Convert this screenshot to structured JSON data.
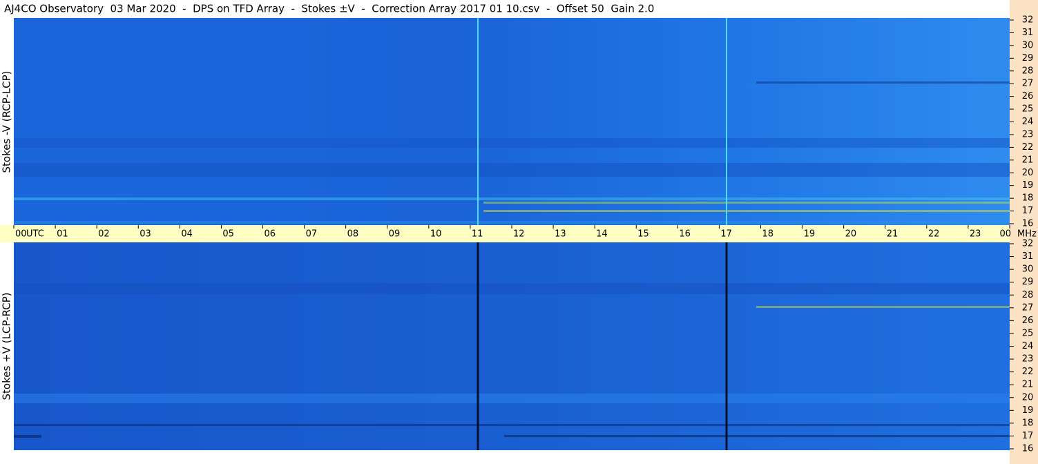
{
  "chart_data": {
    "type": "spectrogram",
    "title": "AJ4CO Observatory  03 Mar 2020  -  DPS on TFD Array  -  Stokes ±V  -  Correction Array 2017 01 10.csv  -  Offset 50  Gain 2.0",
    "x_unit": "UTC",
    "y_unit": "MHz",
    "xlim": [
      0,
      24
    ],
    "xticks": [
      {
        "value": 0,
        "label": "00"
      },
      {
        "value": 1,
        "label": "01"
      },
      {
        "value": 2,
        "label": "02"
      },
      {
        "value": 3,
        "label": "03"
      },
      {
        "value": 4,
        "label": "04"
      },
      {
        "value": 5,
        "label": "05"
      },
      {
        "value": 6,
        "label": "06"
      },
      {
        "value": 7,
        "label": "07"
      },
      {
        "value": 8,
        "label": "08"
      },
      {
        "value": 9,
        "label": "09"
      },
      10,
      11,
      12,
      13,
      14,
      15,
      16,
      17,
      18,
      19,
      20,
      21,
      22,
      23,
      {
        "value": 24,
        "label": "00"
      }
    ],
    "ylim": [
      16,
      32
    ],
    "yticks": [
      16,
      17,
      18,
      19,
      20,
      21,
      22,
      23,
      24,
      25,
      26,
      27,
      28,
      29,
      30,
      31,
      32
    ],
    "panels": [
      {
        "ylabel": "Stokes -V (RCP-LCP)",
        "color": "#1f72e6"
      },
      {
        "ylabel": "Stokes +V (LCP-RCP)",
        "color": "#1862d8"
      }
    ]
  }
}
